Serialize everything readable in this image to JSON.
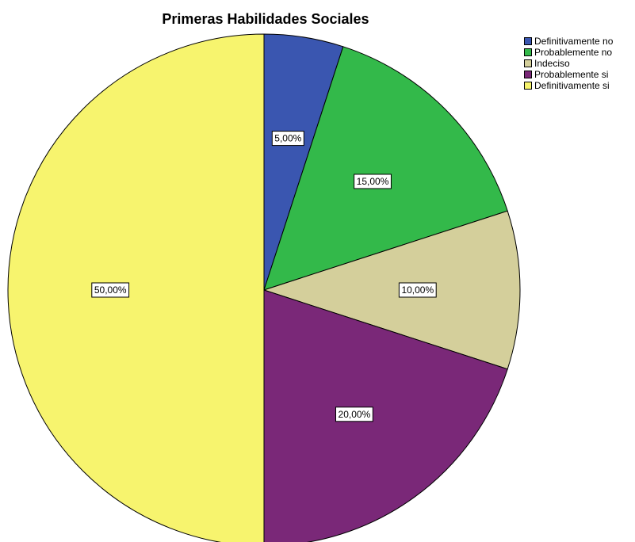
{
  "chart_data": {
    "type": "pie",
    "title": "Primeras Habilidades Sociales",
    "legend_position": "top-right",
    "slices": [
      {
        "label": "Definitivamente no",
        "value": 5.0,
        "display": "5,00%",
        "color": "#3a56b0"
      },
      {
        "label": "Probablemente no",
        "value": 15.0,
        "display": "15,00%",
        "color": "#33b94a"
      },
      {
        "label": "Indeciso",
        "value": 10.0,
        "display": "10,00%",
        "color": "#d4cf9b"
      },
      {
        "label": "Probablemente si",
        "value": 20.0,
        "display": "20,00%",
        "color": "#7a2878"
      },
      {
        "label": "Definitivamente si",
        "value": 50.0,
        "display": "50,00%",
        "color": "#f7f46e"
      }
    ]
  }
}
